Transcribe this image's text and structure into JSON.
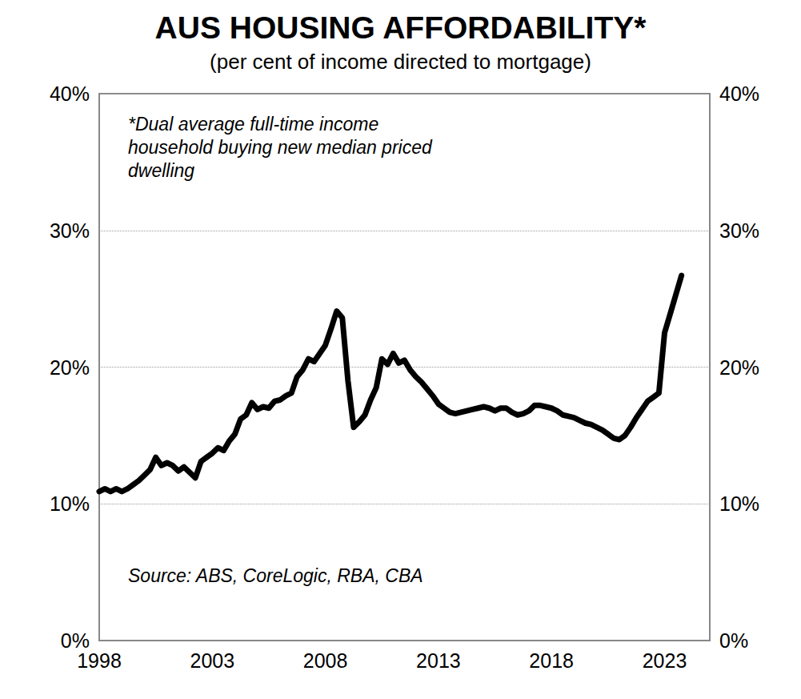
{
  "chart_data": {
    "type": "line",
    "title": "AUS HOUSING AFFORDABILITY*",
    "subtitle": "(per cent of income directed to mortgage)",
    "annotations": [
      "*Dual average full-time income\nhousehold buying new median priced\ndwelling",
      "Source: ABS, CoreLogic, RBA, CBA"
    ],
    "x": [
      1998,
      1998.25,
      1998.5,
      1998.75,
      1999,
      1999.25,
      1999.5,
      1999.75,
      2000,
      2000.25,
      2000.5,
      2000.75,
      2001,
      2001.25,
      2001.5,
      2001.75,
      2002,
      2002.25,
      2002.5,
      2002.75,
      2003,
      2003.25,
      2003.5,
      2003.75,
      2004,
      2004.25,
      2004.5,
      2004.75,
      2005,
      2005.25,
      2005.5,
      2005.75,
      2006,
      2006.25,
      2006.5,
      2006.75,
      2007,
      2007.25,
      2007.5,
      2007.75,
      2008,
      2008.25,
      2008.5,
      2008.75,
      2009,
      2009.25,
      2009.5,
      2009.75,
      2010,
      2010.25,
      2010.5,
      2010.75,
      2011,
      2011.25,
      2011.5,
      2011.75,
      2012,
      2012.25,
      2012.5,
      2012.75,
      2013,
      2013.25,
      2013.5,
      2013.75,
      2014,
      2014.25,
      2014.5,
      2014.75,
      2015,
      2015.25,
      2015.5,
      2015.75,
      2016,
      2016.25,
      2016.5,
      2016.75,
      2017,
      2017.25,
      2017.5,
      2017.75,
      2018,
      2018.25,
      2018.5,
      2018.75,
      2019,
      2019.25,
      2019.5,
      2019.75,
      2020,
      2020.25,
      2020.5,
      2020.75,
      2021,
      2021.25,
      2021.5,
      2021.75,
      2022,
      2022.25,
      2022.5,
      2022.75,
      2023,
      2023.25,
      2023.5,
      2023.75
    ],
    "values": [
      10.9,
      11.1,
      10.9,
      11.1,
      10.9,
      11.1,
      11.4,
      11.7,
      12.1,
      12.5,
      13.4,
      12.8,
      13.0,
      12.8,
      12.4,
      12.7,
      12.3,
      11.9,
      13.1,
      13.4,
      13.7,
      14.1,
      13.9,
      14.6,
      15.1,
      16.2,
      16.5,
      17.4,
      16.9,
      17.1,
      17.0,
      17.5,
      17.6,
      17.9,
      18.1,
      19.3,
      19.8,
      20.6,
      20.4,
      21.0,
      21.6,
      22.8,
      24.1,
      23.6,
      19.0,
      15.6,
      16.0,
      16.5,
      17.6,
      18.5,
      20.6,
      20.2,
      21.0,
      20.3,
      20.5,
      19.8,
      19.3,
      18.9,
      18.4,
      17.9,
      17.3,
      17.0,
      16.7,
      16.6,
      16.7,
      16.8,
      16.9,
      17.0,
      17.1,
      17.0,
      16.8,
      17.0,
      17.0,
      16.7,
      16.5,
      16.6,
      16.8,
      17.2,
      17.2,
      17.1,
      17.0,
      16.8,
      16.5,
      16.4,
      16.3,
      16.1,
      15.9,
      15.8,
      15.6,
      15.4,
      15.1,
      14.8,
      14.7,
      15.0,
      15.6,
      16.3,
      16.9,
      17.5,
      17.8,
      18.1,
      22.5,
      23.9,
      25.3,
      26.7
    ],
    "color": "#000000",
    "xlim": [
      1998,
      2025
    ],
    "xticks": [
      1998,
      2003,
      2008,
      2013,
      2018,
      2023
    ],
    "ylim": [
      0,
      40
    ],
    "yticks": [
      {
        "value": 0,
        "label": "0%"
      },
      {
        "value": 10,
        "label": "10%"
      },
      {
        "value": 20,
        "label": "20%"
      },
      {
        "value": 30,
        "label": "30%"
      },
      {
        "value": 40,
        "label": "40%"
      }
    ],
    "y2lim": [
      0,
      40
    ],
    "y2ticks": [
      {
        "value": 0,
        "label": "0%"
      },
      {
        "value": 10,
        "label": "10%"
      },
      {
        "value": 20,
        "label": "20%"
      },
      {
        "value": 30,
        "label": "30%"
      },
      {
        "value": 40,
        "label": "40%"
      }
    ],
    "grid": true
  }
}
